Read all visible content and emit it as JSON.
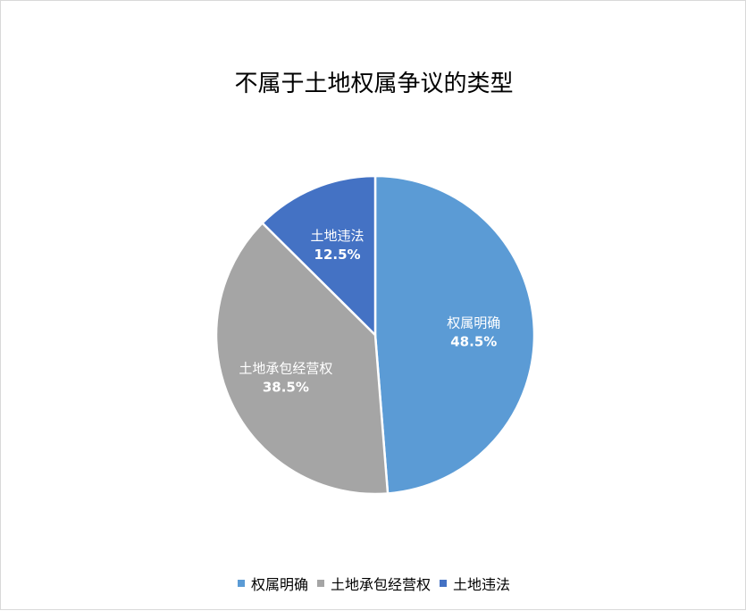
{
  "chart_data": {
    "type": "pie",
    "title": "不属于土地权属争议的类型",
    "categories": [
      "权属明确",
      "土地承包经营权",
      "土地违法"
    ],
    "values": [
      48.5,
      38.5,
      12.5
    ],
    "value_labels": [
      "48.5%",
      "38.5%",
      "12.5%"
    ],
    "colors": [
      "#5b9bd5",
      "#a5a5a5",
      "#4472c4"
    ],
    "legend_position": "bottom",
    "start": "top, clockwise"
  }
}
